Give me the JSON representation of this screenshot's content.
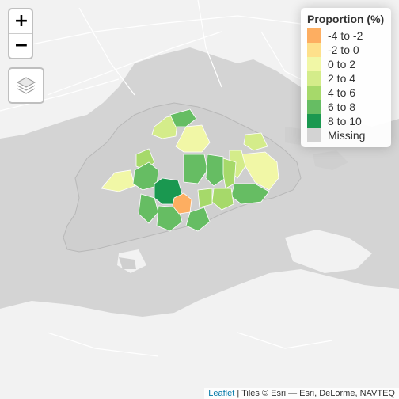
{
  "map": {
    "colors": {
      "background": "#d4d4d4",
      "land": "#f2f2f2",
      "roads": "#ffffff",
      "singapore_outline": "#bdbdbd",
      "missing": "#d3d3d3"
    }
  },
  "controls": {
    "zoom_in_label": "+",
    "zoom_out_label": "−",
    "layers_icon": "layers-icon"
  },
  "legend": {
    "title": "Proportion (%)",
    "items": [
      {
        "label": "-4 to -2",
        "color": "#fdae61"
      },
      {
        "label": "-2 to 0",
        "color": "#fee08b"
      },
      {
        "label": "0 to 2",
        "color": "#f1f7a6"
      },
      {
        "label": "2 to 4",
        "color": "#d4ec8a"
      },
      {
        "label": "4 to 6",
        "color": "#a6d96a"
      },
      {
        "label": "6 to 8",
        "color": "#66bd63"
      },
      {
        "label": "8 to 10",
        "color": "#1a9850"
      },
      {
        "label": "Missing",
        "color": "#d3d3d3"
      }
    ]
  },
  "attribution": {
    "leaflet": "Leaflet",
    "separator": " | ",
    "tiles": "Tiles © Esri — Esri, DeLorme, NAVTEQ"
  }
}
